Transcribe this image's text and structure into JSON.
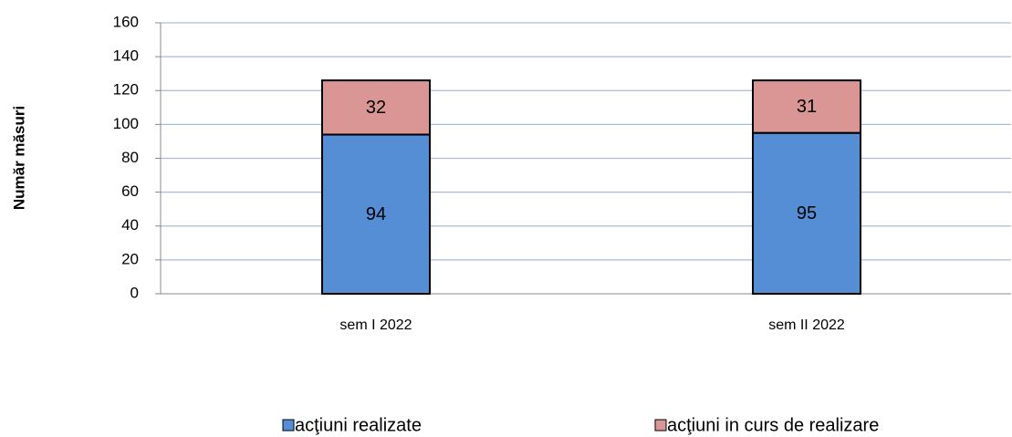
{
  "chart_data": {
    "type": "stacked_bar",
    "y_label": "Număr măsuri",
    "categories": [
      "sem I 2022",
      "sem II 2022"
    ],
    "series": [
      {
        "name": "acţiuni realizate",
        "color": "#558ed5",
        "values": [
          94,
          95
        ]
      },
      {
        "name": "acţiuni in curs de realizare",
        "color": "#d99694",
        "values": [
          32,
          31
        ]
      }
    ],
    "ylim": [
      0,
      160
    ],
    "yticks": [
      0,
      20,
      40,
      60,
      80,
      100,
      120,
      140,
      160
    ],
    "grid": true,
    "legend": "bottom"
  }
}
